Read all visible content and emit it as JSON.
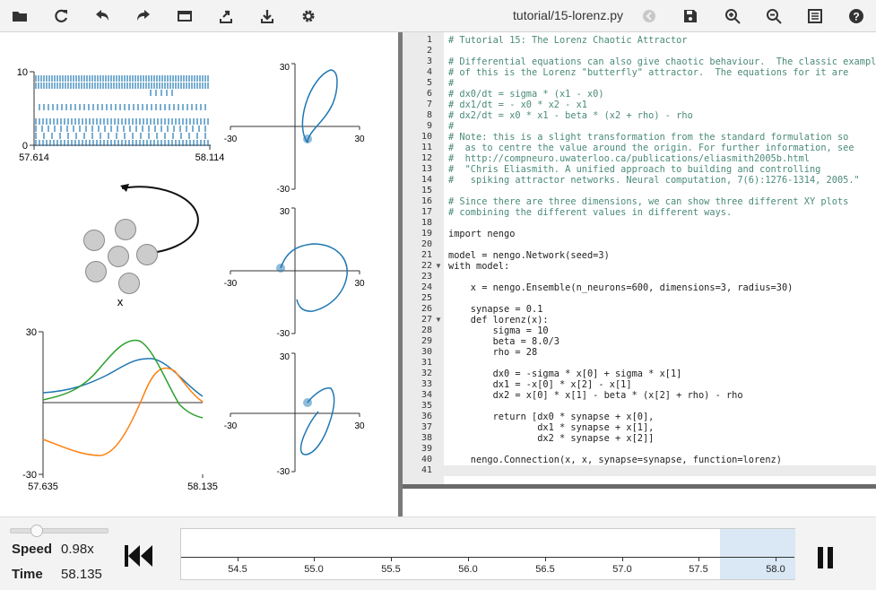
{
  "toolbar": {
    "filename": "tutorial/15-lorenz.py",
    "buttons": [
      "open-folder-icon",
      "reset-icon",
      "undo-icon",
      "redo-icon",
      "minimap-icon",
      "export-icon",
      "download-icon",
      "gear-icon",
      "sync-icon",
      "save-icon",
      "zoom-in-icon",
      "zoom-out-icon",
      "console-icon",
      "help-icon"
    ]
  },
  "plots": {
    "raster": {
      "ymax": "10",
      "ymin": "0",
      "xmin": "57.614",
      "xmax": "58.114"
    },
    "network": {
      "label": "x"
    },
    "timeseries": {
      "ymax": "30",
      "ymin": "-30",
      "xmin": "57.635",
      "xmax": "58.135",
      "series_colors": [
        "#1f77b4",
        "#ff7f0e",
        "#2ca02c"
      ]
    },
    "xy1": {
      "top": "30",
      "bottom": "-30",
      "left": "-30",
      "right": "30"
    },
    "xy2": {
      "top": "30",
      "bottom": "-30",
      "left": "-30",
      "right": "30"
    },
    "xy3": {
      "top": "30",
      "bottom": "-30",
      "left": "-30",
      "right": "30"
    }
  },
  "code_lines": [
    "# Tutorial 15: The Lorenz Chaotic Attractor",
    "",
    "# Differential equations can also give chaotic behaviour.  The classic example",
    "# of this is the Lorenz \"butterfly\" attractor.  The equations for it are",
    "#",
    "# dx0/dt = sigma * (x1 - x0)",
    "# dx1/dt = - x0 * x2 - x1",
    "# dx2/dt = x0 * x1 - beta * (x2 + rho) - rho",
    "#",
    "# Note: this is a slight transformation from the standard formulation so",
    "#  as to centre the value around the origin. For further information, see",
    "#  http://compneuro.uwaterloo.ca/publications/eliasmith2005b.html",
    "#  \"Chris Eliasmith. A unified approach to building and controlling",
    "#   spiking attractor networks. Neural computation, 7(6):1276-1314, 2005.\"",
    "",
    "# Since there are three dimensions, we can show three different XY plots",
    "# combining the different values in different ways.",
    "",
    "import nengo",
    "",
    "model = nengo.Network(seed=3)",
    "with model:",
    "",
    "    x = nengo.Ensemble(n_neurons=600, dimensions=3, radius=30)",
    "",
    "    synapse = 0.1",
    "    def lorenz(x):",
    "        sigma = 10",
    "        beta = 8.0/3",
    "        rho = 28",
    "",
    "        dx0 = -sigma * x[0] + sigma * x[1]",
    "        dx1 = -x[0] * x[2] - x[1]",
    "        dx2 = x[0] * x[1] - beta * (x[2] + rho) - rho",
    "",
    "        return [dx0 * synapse + x[0],",
    "                dx1 * synapse + x[1],",
    "                dx2 * synapse + x[2]]",
    "",
    "    nengo.Connection(x, x, synapse=synapse, function=lorenz)",
    ""
  ],
  "bottom": {
    "speed_label": "Speed",
    "speed_value": "0.98x",
    "time_label": "Time",
    "time_value": "58.135",
    "timeline_ticks": [
      "54.5",
      "55.0",
      "55.5",
      "56.0",
      "56.5",
      "57.0",
      "57.5",
      "58.0"
    ]
  }
}
